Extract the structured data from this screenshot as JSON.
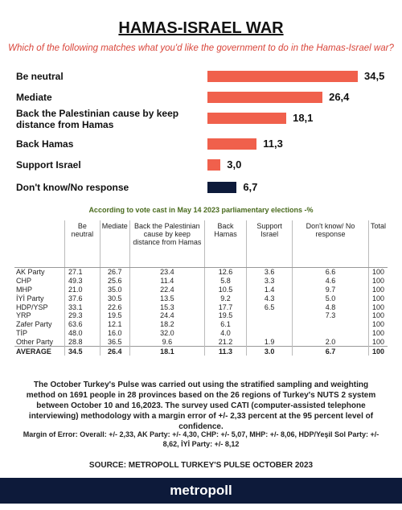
{
  "chart_data": {
    "type": "bar",
    "title": "HAMAS-ISRAEL WAR",
    "subtitle": "Which of the following matches what you'd like the government to do in the Hamas-Israel war?",
    "categories": [
      "Be neutral",
      "Mediate",
      "Back the Palestinian cause by keep distance from Hamas",
      "Back Hamas",
      "Support Israel",
      "Don't know/No response"
    ],
    "values": [
      34.5,
      26.4,
      18.1,
      11.3,
      3.0,
      6.7
    ],
    "value_labels": [
      "34,5",
      "26,4",
      "18,1",
      "11,3",
      "3,0",
      "6,7"
    ],
    "colors": [
      "#f0604c",
      "#f0604c",
      "#f0604c",
      "#f0604c",
      "#f0604c",
      "#0d1a3a"
    ]
  },
  "table": {
    "caption": "According to vote cast in May 14 2023 parliamentary elections -%",
    "header": [
      null,
      "Be neutral",
      "Mediate",
      "Back the Palestinian cause by keep distance from Hamas",
      "Back Hamas",
      "Support Israel",
      "Don't know/ No response",
      "Total"
    ],
    "rows": [
      [
        "AK Party",
        "27.1",
        "26.7",
        "23.4",
        "12.6",
        "3.6",
        "6.6",
        "100"
      ],
      [
        "CHP",
        "49.3",
        "25.6",
        "11.4",
        "5.8",
        "3.3",
        "4.6",
        "100"
      ],
      [
        "MHP",
        "21.0",
        "35.0",
        "22.4",
        "10.5",
        "1.4",
        "9.7",
        "100"
      ],
      [
        "İYİ Party",
        "37.6",
        "30.5",
        "13.5",
        "9.2",
        "4.3",
        "5.0",
        "100"
      ],
      [
        "HDP/YSP",
        "33.1",
        "22.6",
        "15.3",
        "17.7",
        "6.5",
        "4.8",
        "100"
      ],
      [
        "YRP",
        "29.3",
        "19.5",
        "24.4",
        "19.5",
        null,
        "7.3",
        "100"
      ],
      [
        "Zafer Party",
        "63.6",
        "12.1",
        "18.2",
        "6.1",
        null,
        null,
        "100"
      ],
      [
        "TİP",
        "48.0",
        "16.0",
        "32.0",
        "4.0",
        null,
        null,
        "100"
      ],
      [
        "Other Party",
        "28.8",
        "36.5",
        "9.6",
        "21.2",
        "1.9",
        "2.0",
        "100"
      ],
      [
        "AVERAGE",
        "34.5",
        "26.4",
        "18.1",
        "11.3",
        "3.0",
        "6.7",
        "100"
      ]
    ]
  },
  "footnote": "The October Turkey's Pulse was carried out using the stratified sampling and weighting method on 1691 people in 28 provinces based on the 26 regions of Turkey's NUTS 2 system between October 10 and 16,2023. The survey used CATI (computer-assisted telephone interviewing) methodology with a margin error of +/- 2,33 percent at the 95 percent level of confidence.",
  "margin_of_error": "Margin of Error: Overall: +/- 2,33, AK Party: +/- 4,30, CHP: +/- 5,07, MHP: +/- 8,06, HDP/Yeşil Sol Party: +/- 8,62, İYİ Party: +/- 8,12",
  "source": "SOURCE: METROPOLL TURKEY'S PULSE OCTOBER 2023",
  "footer": {
    "brand": "metropoll"
  }
}
